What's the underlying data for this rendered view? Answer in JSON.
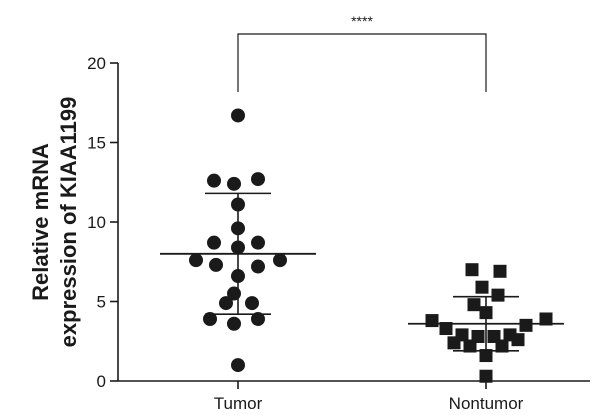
{
  "chart_data": {
    "type": "scatter",
    "subtype": "dot-plot-with-mean-sd",
    "ylabel_line1": "Relative mRNA",
    "ylabel_line2": "expression of KIAA1199",
    "ylim": [
      0,
      20
    ],
    "yticks": [
      "0",
      "5",
      "10",
      "15",
      "20"
    ],
    "categories": [
      "Tumor",
      "Nontumor"
    ],
    "significance": "****",
    "grid": false,
    "colors": {
      "marks": "#1a1a1a",
      "background": "#ffffff"
    },
    "series": [
      {
        "category": "Tumor",
        "marker": "circle",
        "mean": 8.0,
        "sd_upper": 11.8,
        "sd_lower": 4.2,
        "points": [
          {
            "x": 0,
            "y": 16.7
          },
          {
            "x": -0.6,
            "y": 12.6
          },
          {
            "x": -0.1,
            "y": 12.4
          },
          {
            "x": 0.5,
            "y": 12.7
          },
          {
            "x": 0,
            "y": 11.1
          },
          {
            "x": 0,
            "y": 9.6
          },
          {
            "x": -0.6,
            "y": 8.7
          },
          {
            "x": 0.5,
            "y": 8.7
          },
          {
            "x": 0,
            "y": 8.4
          },
          {
            "x": -1.05,
            "y": 7.6
          },
          {
            "x": 1.05,
            "y": 7.6
          },
          {
            "x": -0.55,
            "y": 7.3
          },
          {
            "x": 0.5,
            "y": 7.2
          },
          {
            "x": 0,
            "y": 6.6
          },
          {
            "x": -0.1,
            "y": 5.5
          },
          {
            "x": -0.3,
            "y": 4.9
          },
          {
            "x": 0.35,
            "y": 4.9
          },
          {
            "x": -0.7,
            "y": 3.9
          },
          {
            "x": 0.5,
            "y": 3.9
          },
          {
            "x": -0.1,
            "y": 3.6
          },
          {
            "x": 0,
            "y": 1.0
          }
        ]
      },
      {
        "category": "Nontumor",
        "marker": "square",
        "mean": 3.6,
        "sd_upper": 5.3,
        "sd_lower": 1.9,
        "points": [
          {
            "x": -0.35,
            "y": 7.0
          },
          {
            "x": 0.35,
            "y": 6.9
          },
          {
            "x": -0.1,
            "y": 5.9
          },
          {
            "x": 0.3,
            "y": 5.4
          },
          {
            "x": -0.3,
            "y": 4.8
          },
          {
            "x": 0,
            "y": 4.3
          },
          {
            "x": -1.35,
            "y": 3.8
          },
          {
            "x": 1.5,
            "y": 3.9
          },
          {
            "x": 1.0,
            "y": 3.5
          },
          {
            "x": -1.0,
            "y": 3.3
          },
          {
            "x": -0.6,
            "y": 2.9
          },
          {
            "x": -0.2,
            "y": 2.8
          },
          {
            "x": 0.2,
            "y": 2.8
          },
          {
            "x": 0.6,
            "y": 2.9
          },
          {
            "x": -0.8,
            "y": 2.4
          },
          {
            "x": -0.4,
            "y": 2.2
          },
          {
            "x": 0.4,
            "y": 2.2
          },
          {
            "x": 0.8,
            "y": 2.6
          },
          {
            "x": 0,
            "y": 1.6
          },
          {
            "x": 0,
            "y": 0.3
          }
        ]
      }
    ]
  }
}
